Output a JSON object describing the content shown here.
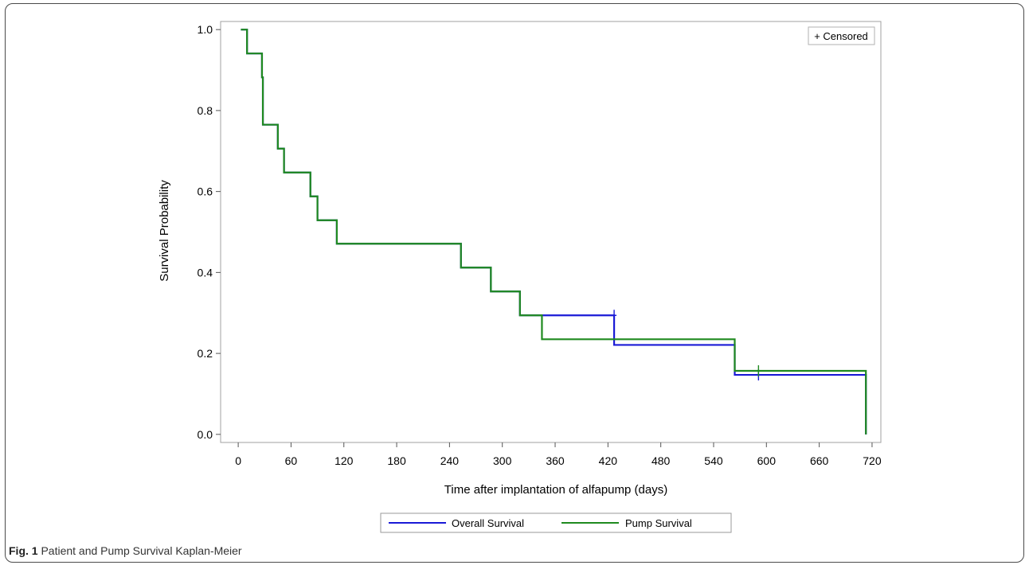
{
  "caption": {
    "label": "Fig. 1",
    "text": "Patient and Pump Survival Kaplan-Meier"
  },
  "chart_data": {
    "type": "line",
    "step": true,
    "xlabel": "Time after implantation of alfapump (days)",
    "ylabel": "Survival Probability",
    "xlim": [
      -20,
      730
    ],
    "ylim": [
      -0.02,
      1.02
    ],
    "xticks": [
      0,
      60,
      120,
      180,
      240,
      300,
      360,
      420,
      480,
      540,
      600,
      660,
      720
    ],
    "yticks": [
      0.0,
      0.2,
      0.4,
      0.6,
      0.8,
      1.0
    ],
    "ytick_labels": [
      "0.0",
      "0.2",
      "0.4",
      "0.6",
      "0.8",
      "1.0"
    ],
    "grid": false,
    "inset_legend": "+ Censored",
    "inset_legend_position": "top-right",
    "legend_position": "bottom",
    "series": [
      {
        "name": "Overall Survival",
        "color": "#1a1ad6",
        "x": [
          3,
          10,
          27,
          28,
          45,
          52,
          82,
          90,
          112,
          253,
          287,
          320,
          427,
          564,
          713
        ],
        "y": [
          1.0,
          0.941,
          0.882,
          0.765,
          0.706,
          0.647,
          0.588,
          0.529,
          0.471,
          0.412,
          0.353,
          0.294,
          0.221,
          0.147,
          0.0
        ],
        "censored_x": [
          427,
          591
        ],
        "censored_y": [
          0.294,
          0.147
        ]
      },
      {
        "name": "Pump Survival",
        "color": "#1f8a1f",
        "x": [
          3,
          10,
          27,
          28,
          45,
          52,
          82,
          90,
          112,
          253,
          287,
          320,
          345,
          564,
          713
        ],
        "y": [
          1.0,
          0.941,
          0.882,
          0.765,
          0.706,
          0.647,
          0.588,
          0.529,
          0.471,
          0.412,
          0.353,
          0.294,
          0.235,
          0.157,
          0.0
        ],
        "censored_x": [
          591
        ],
        "censored_y": [
          0.157
        ]
      }
    ]
  }
}
